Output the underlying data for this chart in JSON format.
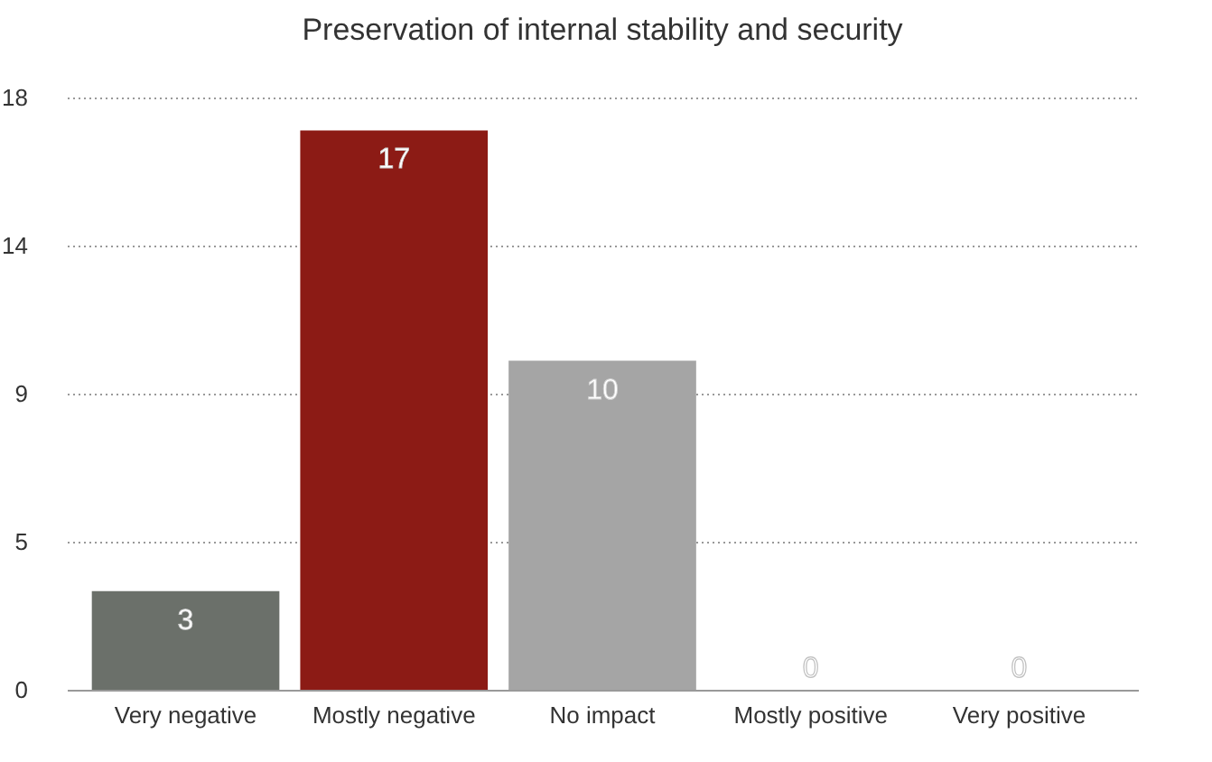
{
  "chart_data": {
    "type": "bar",
    "title": "Preservation of internal stability and security",
    "categories": [
      "Very negative",
      "Mostly negative",
      "No impact",
      "Mostly positive",
      "Very positive"
    ],
    "values": [
      3,
      17,
      10,
      0,
      0
    ],
    "colors": [
      "#6b706a",
      "#8c1b15",
      "#a5a5a5",
      "#c8c8c8",
      "#c8c8c8"
    ],
    "ylim": [
      0,
      18
    ],
    "yticks": [
      0,
      {
        "value": 4.5,
        "label": "5"
      },
      9,
      {
        "value": 13.5,
        "label": "14"
      },
      18
    ],
    "grid": "y",
    "data_labels": true
  }
}
